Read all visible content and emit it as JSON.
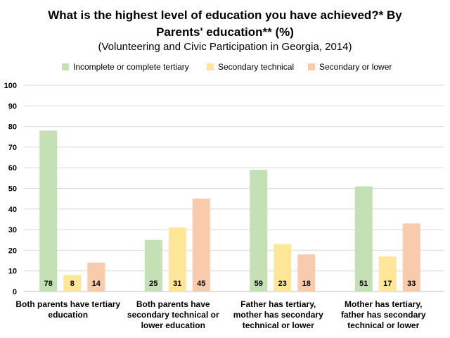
{
  "chart_data": {
    "type": "bar",
    "title_line1": "What is the highest level of education you have achieved?* By",
    "title_line2": "Parents' education** (%)",
    "subtitle": "(Volunteering and Civic Participation in Georgia, 2014)",
    "categories": [
      [
        "Both parents have tertiary",
        "education"
      ],
      [
        "Both parents have",
        "secondary technical or",
        "lower education"
      ],
      [
        "Father has tertiary,",
        "mother has secondary",
        "technical or lower"
      ],
      [
        "Mother has tertiary,",
        "father has secondary",
        "technical or lower"
      ]
    ],
    "series": [
      {
        "name": "Incomplete or complete tertiary",
        "color": "#c5e0b4",
        "values": [
          78,
          25,
          59,
          51
        ]
      },
      {
        "name": "Secondary technical",
        "color": "#ffe699",
        "values": [
          8,
          31,
          23,
          17
        ]
      },
      {
        "name": "Secondary or lower",
        "color": "#f8cbad",
        "values": [
          14,
          45,
          18,
          33
        ]
      }
    ],
    "ylim": [
      0,
      100
    ],
    "yticks": [
      0,
      10,
      20,
      30,
      40,
      50,
      60,
      70,
      80,
      90,
      100
    ],
    "xlabel": "",
    "ylabel": "",
    "grid": true,
    "legend": "top"
  }
}
